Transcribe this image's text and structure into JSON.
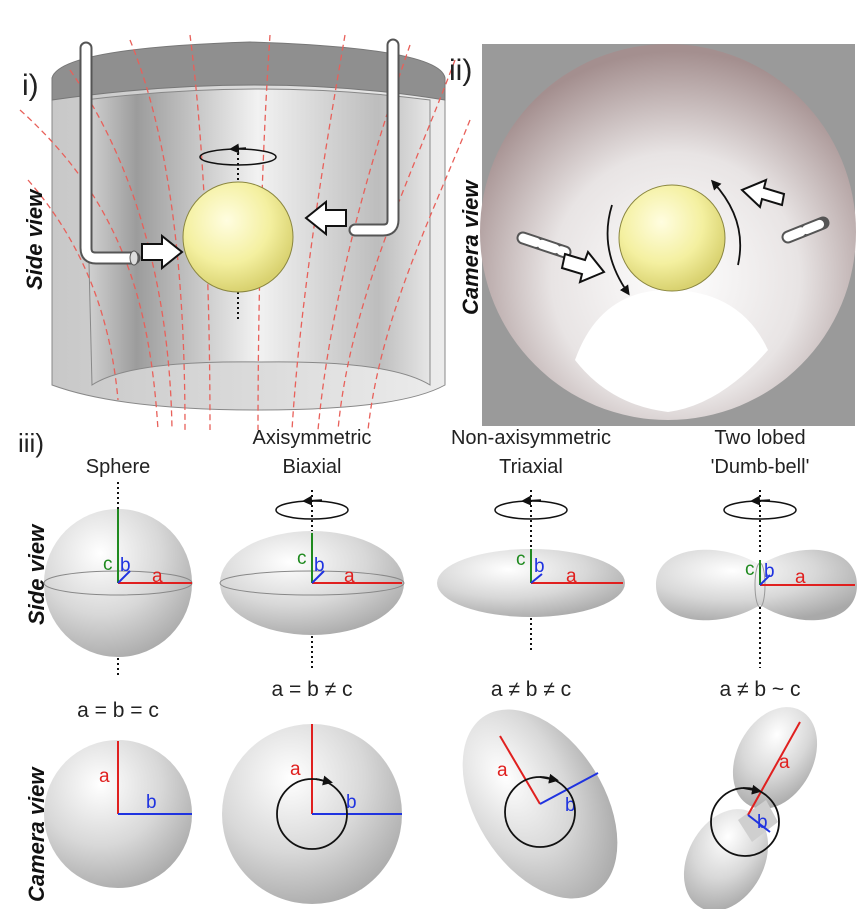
{
  "panels": {
    "i": "i)",
    "ii": "ii)",
    "iii": "iii)"
  },
  "views": {
    "side": "Side view",
    "camera": "Camera view"
  },
  "shapes": [
    {
      "title1": "Sphere",
      "title2": "",
      "relation": "a = b = c"
    },
    {
      "title1": "Axisymmetric",
      "title2": "Biaxial",
      "relation": "a = b ≠ c"
    },
    {
      "title1": "Non-axisymmetric",
      "title2": "Triaxial",
      "relation": "a ≠ b ≠ c"
    },
    {
      "title1": "Two lobed",
      "title2": "'Dumb-bell'",
      "relation": "a ≠ b ~ c"
    }
  ],
  "axes": {
    "a": "a",
    "b": "b",
    "c": "c"
  },
  "colors": {
    "axis_a": "#e0201f",
    "axis_b": "#1f33e0",
    "axis_c": "#1f8a1f",
    "field_lines": "#e8605a",
    "particle": "#f2ef9a",
    "camera_bg": "#9a9a9a"
  },
  "icons": {
    "rotation": "rotation-arrow-icon",
    "flow": "flow-arrow-icon",
    "nozzle": "gas-nozzle-icon"
  }
}
